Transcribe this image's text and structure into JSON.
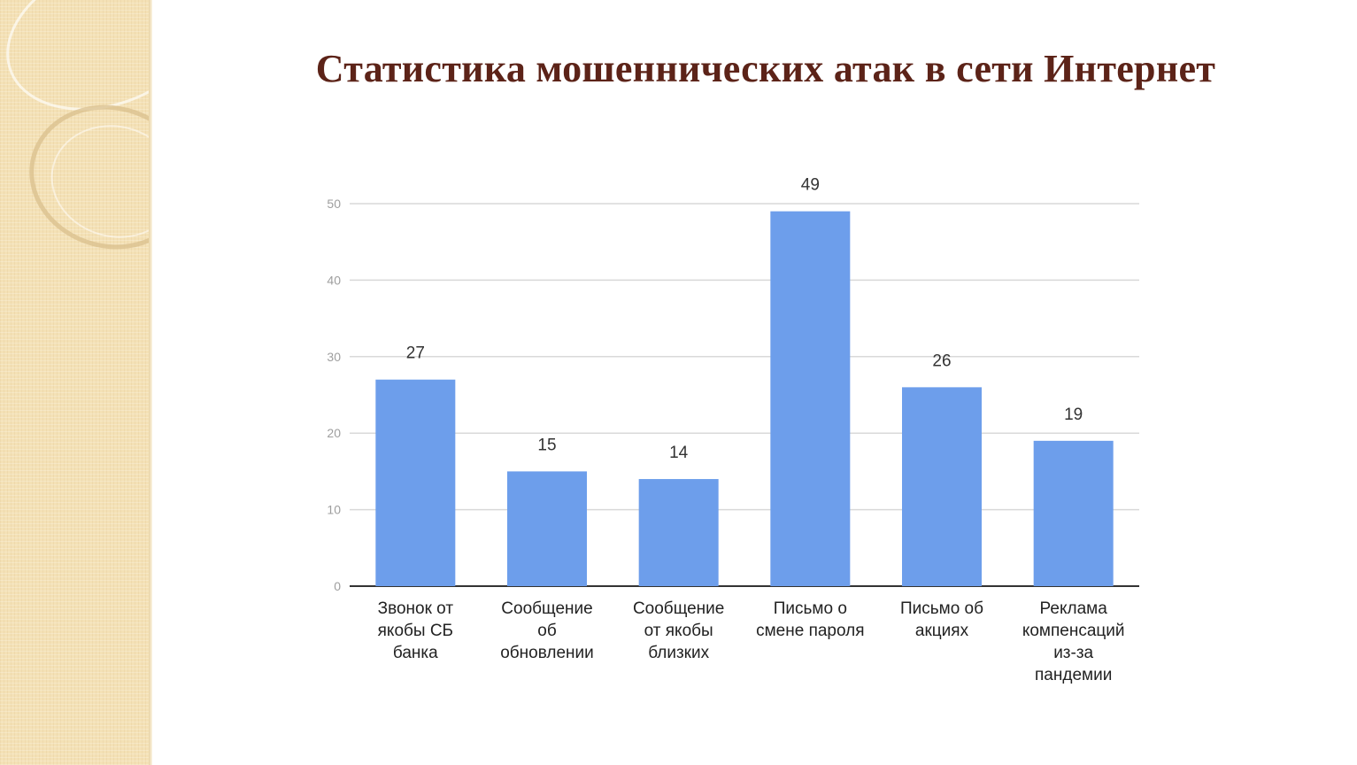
{
  "slide": {
    "title": "Статистика мошеннических атак в сети Интернет"
  },
  "colors": {
    "bar": "#6d9eeb",
    "gridline": "#d9d9d9",
    "axis": "#333333",
    "tick_label": "#9e9e9e",
    "category_label": "#222222",
    "data_label": "#333333",
    "title": "#5c2318",
    "side_panel": "#f4e1b6"
  },
  "chart_data": {
    "type": "bar",
    "title": "",
    "xlabel": "",
    "ylabel": "",
    "ylim": [
      0,
      50
    ],
    "yticks": [
      0,
      10,
      20,
      30,
      40,
      50
    ],
    "grid": true,
    "legend": "none",
    "categories": [
      [
        "Звонок от",
        "якобы СБ",
        "банка"
      ],
      [
        "Сообщение",
        "об",
        "обновлении"
      ],
      [
        "Сообщение",
        "от якобы",
        "близких"
      ],
      [
        "Письмо о",
        "смене пароля"
      ],
      [
        "Письмо об",
        "акциях"
      ],
      [
        "Реклама",
        "компенсаций",
        "из-за",
        "пандемии"
      ]
    ],
    "values": [
      27,
      15,
      14,
      49,
      26,
      19
    ]
  }
}
